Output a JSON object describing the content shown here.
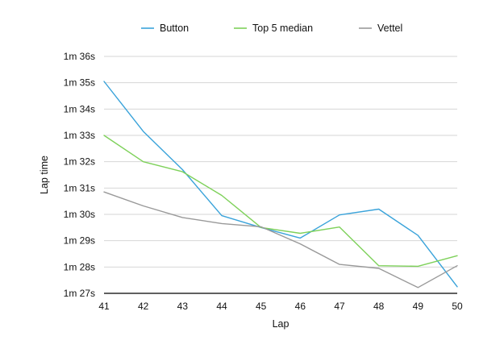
{
  "chart_data": {
    "type": "line",
    "xlabel": "Lap",
    "ylabel": "Lap time",
    "x": [
      41,
      42,
      43,
      44,
      45,
      46,
      47,
      48,
      49,
      50
    ],
    "x_tick_labels": [
      "41",
      "42",
      "43",
      "44",
      "45",
      "46",
      "47",
      "48",
      "49",
      "50"
    ],
    "ylim": [
      87,
      96
    ],
    "y_unit": "seconds",
    "y_ticks": [
      87,
      88,
      89,
      90,
      91,
      92,
      93,
      94,
      95,
      96
    ],
    "y_tick_labels": [
      "1m 27s",
      "1m 28s",
      "1m 29s",
      "1m 30s",
      "1m 31s",
      "1m 32s",
      "1m 33s",
      "1m 34s",
      "1m 35s",
      "1m 36s"
    ],
    "grid": true,
    "legend_position": "top",
    "series": [
      {
        "name": "Button",
        "color": "#3aa3da",
        "values": [
          95.05,
          93.15,
          91.7,
          89.95,
          89.5,
          89.1,
          89.98,
          90.2,
          89.2,
          87.25
        ]
      },
      {
        "name": "Top 5 median",
        "color": "#7ed15a",
        "values": [
          93.0,
          92.0,
          91.62,
          90.72,
          89.5,
          89.28,
          89.52,
          88.05,
          88.03,
          88.43
        ]
      },
      {
        "name": "Vettel",
        "color": "#999999",
        "values": [
          90.85,
          90.32,
          89.88,
          89.65,
          89.53,
          88.88,
          88.1,
          87.95,
          87.22,
          88.05
        ]
      }
    ]
  }
}
